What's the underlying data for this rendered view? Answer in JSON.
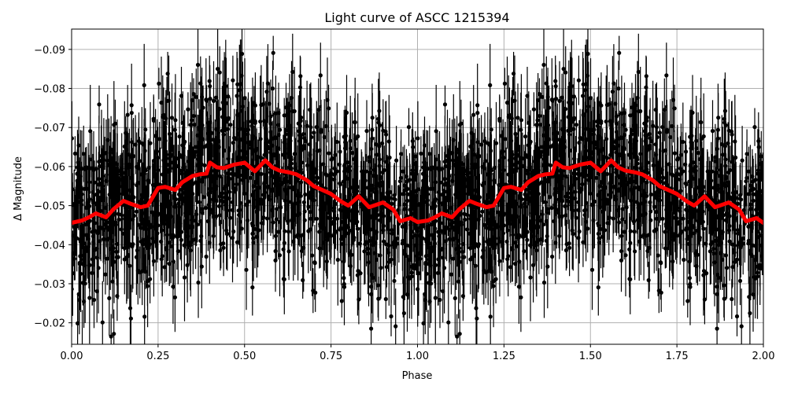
{
  "chart_data": {
    "type": "scatter",
    "title": "Light curve of ASCC 1215394",
    "xlabel": "Phase",
    "ylabel": "Δ Magnitude",
    "xlim": [
      0.0,
      2.0
    ],
    "ylim": [
      -0.0145,
      -0.0952
    ],
    "y_inverted": true,
    "grid": true,
    "legend": null,
    "x_ticks": [
      0.0,
      0.25,
      0.5,
      0.75,
      1.0,
      1.25,
      1.5,
      1.75,
      2.0
    ],
    "x_tick_labels": [
      "0.00",
      "0.25",
      "0.50",
      "0.75",
      "1.00",
      "1.25",
      "1.50",
      "1.75",
      "2.00"
    ],
    "y_ticks": [
      -0.09,
      -0.08,
      -0.07,
      -0.06,
      -0.05,
      -0.04,
      -0.03,
      -0.02
    ],
    "y_tick_labels": [
      "−0.09",
      "−0.08",
      "−0.07",
      "−0.06",
      "−0.05",
      "−0.04",
      "−0.03",
      "−0.02"
    ],
    "series": [
      {
        "name": "observations",
        "kind": "errorbar-scatter",
        "color": "#000000",
        "description": "Dense black points with vertical error bars, scattered roughly between -0.095 and -0.015 mag across phase 0–2 (phase-folded, repeated twice)",
        "approx_center": -0.055,
        "approx_spread": 0.02,
        "typical_errorbar": 0.008
      },
      {
        "name": "binned-median",
        "kind": "line",
        "color": "#ff0000",
        "linewidth": 4,
        "x": [
          0.0,
          0.03,
          0.05,
          0.07,
          0.1,
          0.12,
          0.15,
          0.17,
          0.2,
          0.22,
          0.25,
          0.27,
          0.3,
          0.32,
          0.35,
          0.37,
          0.39,
          0.4,
          0.42,
          0.44,
          0.47,
          0.5,
          0.53,
          0.56,
          0.58,
          0.6,
          0.63,
          0.65,
          0.68,
          0.7,
          0.73,
          0.75,
          0.78,
          0.8,
          0.83,
          0.86,
          0.9,
          0.93,
          0.95,
          0.98,
          1.0,
          1.03,
          1.05,
          1.07,
          1.1,
          1.12,
          1.15,
          1.17,
          1.2,
          1.22,
          1.25,
          1.27,
          1.3,
          1.32,
          1.35,
          1.37,
          1.39,
          1.4,
          1.42,
          1.44,
          1.47,
          1.5,
          1.53,
          1.56,
          1.58,
          1.6,
          1.63,
          1.65,
          1.68,
          1.7,
          1.73,
          1.75,
          1.78,
          1.8,
          1.83,
          1.86,
          1.9,
          1.93,
          1.95,
          1.98,
          2.0
        ],
        "y": [
          -0.0456,
          -0.0462,
          -0.047,
          -0.048,
          -0.047,
          -0.049,
          -0.0512,
          -0.0505,
          -0.0496,
          -0.05,
          -0.0545,
          -0.0548,
          -0.054,
          -0.056,
          -0.0576,
          -0.058,
          -0.0582,
          -0.061,
          -0.0598,
          -0.0596,
          -0.0605,
          -0.061,
          -0.0588,
          -0.0616,
          -0.0598,
          -0.059,
          -0.0585,
          -0.058,
          -0.0565,
          -0.055,
          -0.0538,
          -0.053,
          -0.051,
          -0.05,
          -0.0524,
          -0.0496,
          -0.0508,
          -0.049,
          -0.046,
          -0.0468,
          -0.0458,
          -0.0462,
          -0.047,
          -0.048,
          -0.047,
          -0.049,
          -0.0512,
          -0.0505,
          -0.0496,
          -0.05,
          -0.0545,
          -0.0548,
          -0.054,
          -0.056,
          -0.0576,
          -0.058,
          -0.0582,
          -0.061,
          -0.0598,
          -0.0596,
          -0.0605,
          -0.061,
          -0.0588,
          -0.0616,
          -0.0598,
          -0.059,
          -0.0585,
          -0.058,
          -0.0565,
          -0.055,
          -0.0538,
          -0.053,
          -0.051,
          -0.05,
          -0.0524,
          -0.0496,
          -0.0508,
          -0.049,
          -0.046,
          -0.0468,
          -0.0456
        ]
      }
    ]
  },
  "style": {
    "background": "#ffffff",
    "axes_color": "#000000",
    "grid_color": "#b0b0b0",
    "points_color": "#000000",
    "curve_color": "#ff0000"
  }
}
